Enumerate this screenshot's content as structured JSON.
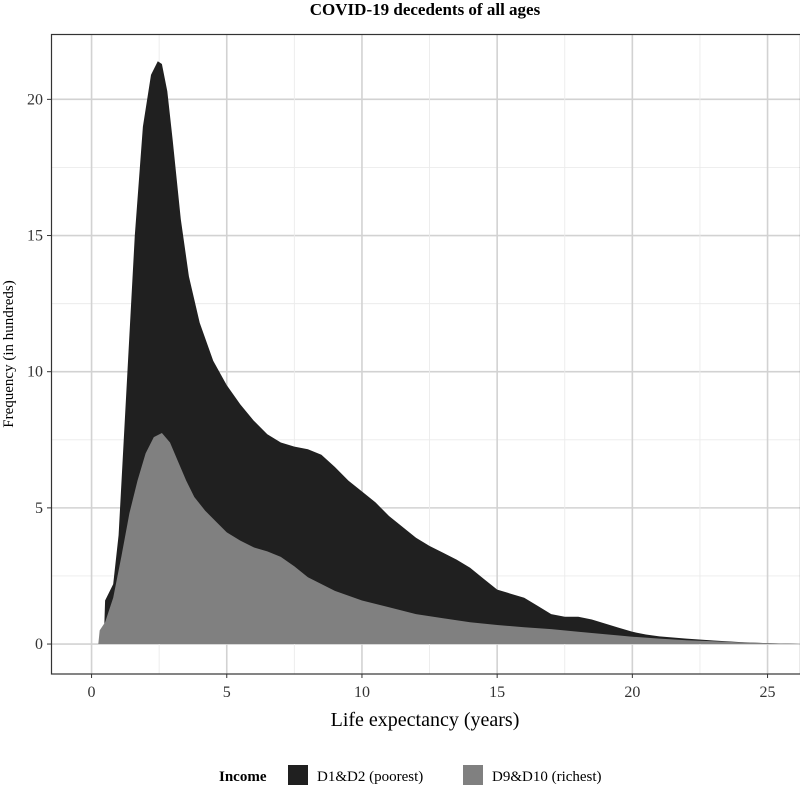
{
  "chart_data": {
    "type": "area",
    "title": "COVID-19 decedents of all ages",
    "xlabel": "Life expectancy (years)",
    "ylabel": "Frequency (in hundreds)",
    "xlim": [
      -1.5,
      26.2
    ],
    "ylim": [
      -1.1,
      22.4
    ],
    "x_ticks": [
      0,
      5,
      10,
      15,
      20,
      25
    ],
    "y_ticks": [
      0,
      5,
      10,
      15,
      20
    ],
    "grid": true,
    "legend": {
      "title": "Income",
      "position": "bottom",
      "entries": [
        "D1&D2 (poorest)",
        "D9&D10 (richest)"
      ]
    },
    "series": [
      {
        "name": "D1&D2 (poorest)",
        "color": "#202020",
        "x": [
          0.45,
          0.5,
          0.8,
          1.0,
          1.3,
          1.6,
          1.9,
          2.2,
          2.45,
          2.6,
          2.8,
          3.0,
          3.3,
          3.6,
          4.0,
          4.5,
          5.0,
          5.5,
          6.0,
          6.5,
          7.0,
          7.5,
          8.0,
          8.5,
          9.0,
          9.5,
          10.0,
          10.5,
          11.0,
          11.5,
          12.0,
          12.5,
          13.0,
          13.5,
          14.0,
          14.5,
          15.0,
          15.5,
          16.0,
          16.5,
          17.0,
          17.5,
          18.0,
          18.5,
          19.0,
          19.5,
          20.0,
          20.5,
          21.0,
          22.0,
          23.0,
          24.0,
          25.0,
          26.2
        ],
        "y": [
          0,
          1.6,
          2.2,
          4.0,
          9.5,
          15.0,
          19.0,
          20.9,
          21.4,
          21.3,
          20.3,
          18.5,
          15.6,
          13.5,
          11.8,
          10.4,
          9.5,
          8.8,
          8.2,
          7.7,
          7.4,
          7.25,
          7.15,
          6.95,
          6.5,
          6.0,
          5.6,
          5.2,
          4.7,
          4.3,
          3.9,
          3.6,
          3.35,
          3.1,
          2.8,
          2.4,
          2.0,
          1.85,
          1.7,
          1.4,
          1.1,
          1.0,
          1.0,
          0.9,
          0.75,
          0.6,
          0.45,
          0.35,
          0.28,
          0.2,
          0.13,
          0.07,
          0.03,
          0
        ]
      },
      {
        "name": "D9&D10 (richest)",
        "color": "#808080",
        "x": [
          0.25,
          0.3,
          0.5,
          0.8,
          1.1,
          1.4,
          1.7,
          2.0,
          2.3,
          2.6,
          2.9,
          3.2,
          3.5,
          3.8,
          4.2,
          4.6,
          5.0,
          5.5,
          6.0,
          6.5,
          7.0,
          7.5,
          8.0,
          9.0,
          10.0,
          11.0,
          12.0,
          13.0,
          14.0,
          15.0,
          16.0,
          17.0,
          18.0,
          19.0,
          20.0,
          21.0,
          22.0,
          23.0,
          24.0,
          26.2
        ],
        "y": [
          0,
          0.5,
          0.8,
          1.7,
          3.2,
          4.8,
          6.0,
          7.0,
          7.6,
          7.75,
          7.4,
          6.7,
          6.0,
          5.4,
          4.9,
          4.5,
          4.1,
          3.8,
          3.55,
          3.4,
          3.2,
          2.85,
          2.45,
          1.95,
          1.6,
          1.35,
          1.1,
          0.95,
          0.8,
          0.7,
          0.62,
          0.55,
          0.45,
          0.36,
          0.27,
          0.2,
          0.14,
          0.1,
          0.06,
          0
        ]
      }
    ]
  }
}
